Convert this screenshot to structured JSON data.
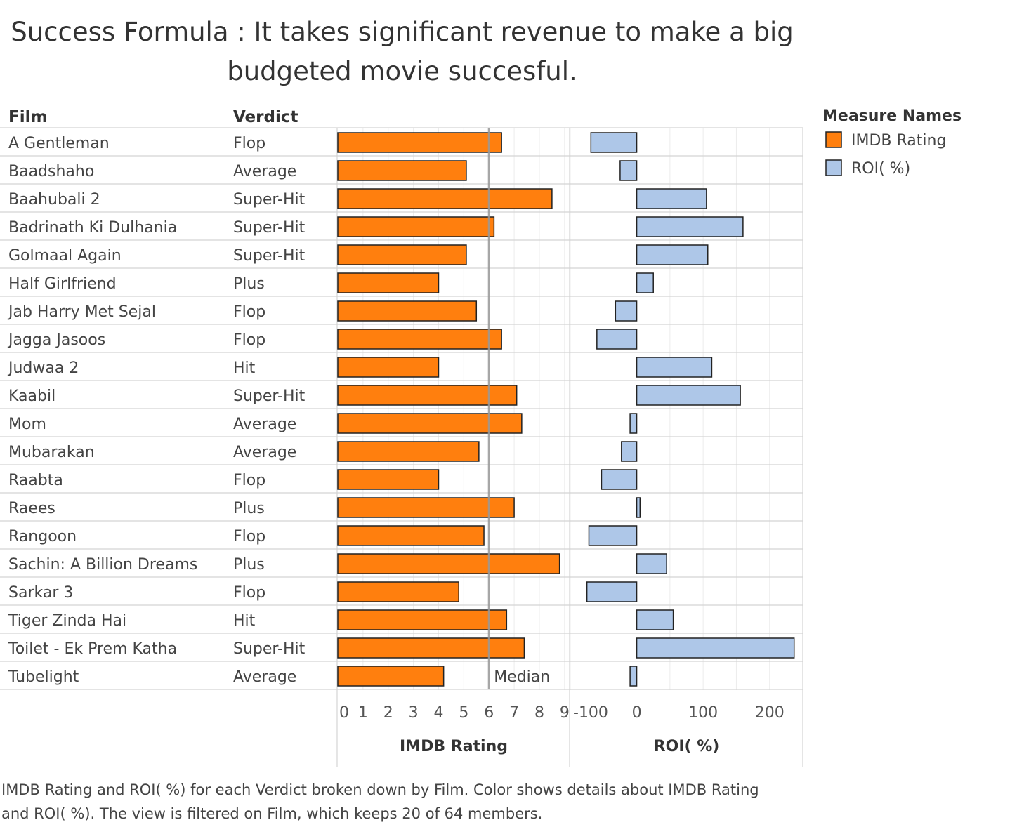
{
  "title_line1": "Success Formula : It takes significant revenue to make a big",
  "title_line2": "budgeted movie succesful.",
  "caption": "IMDB Rating and ROI( %) for each Verdict broken down by Film.  Color shows details about IMDB Rating and ROI( %). The view is filtered on Film, which keeps 20 of 64 members.",
  "colors": {
    "imdb": "#ff7f0e",
    "roi": "#aec7e8",
    "border": "#222222",
    "median": "#999999"
  },
  "chart_data": {
    "type": "bar",
    "orientation": "horizontal",
    "row_headers": [
      "Film",
      "Verdict"
    ],
    "films": [
      "A Gentleman",
      "Baadshaho",
      "Baahubali 2",
      "Badrinath Ki Dulhania",
      "Golmaal Again",
      "Half Girlfriend",
      "Jab Harry Met Sejal",
      "Jagga Jasoos",
      "Judwaa 2",
      "Kaabil",
      "Mom",
      "Mubarakan",
      "Raabta",
      "Raees",
      "Rangoon",
      "Sachin: A Billion Dreams",
      "Sarkar 3",
      "Tiger Zinda Hai",
      "Toilet - Ek Prem Katha",
      "Tubelight"
    ],
    "verdicts": [
      "Flop",
      "Average",
      "Super-Hit",
      "Super-Hit",
      "Super-Hit",
      "Plus",
      "Flop",
      "Flop",
      "Hit",
      "Super-Hit",
      "Average",
      "Average",
      "Flop",
      "Plus",
      "Flop",
      "Plus",
      "Flop",
      "Hit",
      "Super-Hit",
      "Average"
    ],
    "series": [
      {
        "name": "IMDB Rating",
        "axis_label": "IMDB Rating",
        "ticks": [
          "0",
          "1",
          "2",
          "3",
          "4",
          "5",
          "6",
          "7",
          "8",
          "9"
        ],
        "xlim": [
          0,
          9.2
        ],
        "values": [
          6.5,
          5.1,
          8.5,
          6.2,
          5.1,
          4.0,
          5.5,
          6.5,
          4.0,
          7.1,
          7.3,
          5.6,
          4.0,
          7.0,
          5.8,
          8.8,
          4.8,
          6.7,
          7.4,
          4.2
        ],
        "reference_line": {
          "label": "Median",
          "value": 6.0
        }
      },
      {
        "name": "ROI( %)",
        "axis_label": "ROI( %)",
        "ticks": [
          "-100",
          "0",
          "100",
          "200"
        ],
        "tick_values": [
          -100,
          0,
          100,
          200
        ],
        "xlim": [
          -100,
          250
        ],
        "values": [
          -69,
          -25,
          105,
          160,
          107,
          25,
          -32,
          -60,
          113,
          156,
          -10,
          -23,
          -53,
          5,
          -72,
          45,
          -75,
          55,
          237,
          -10
        ]
      }
    ],
    "legend": {
      "title": "Measure Names",
      "position": "right",
      "items": [
        "IMDB Rating",
        "ROI( %)"
      ]
    },
    "grid": true
  }
}
